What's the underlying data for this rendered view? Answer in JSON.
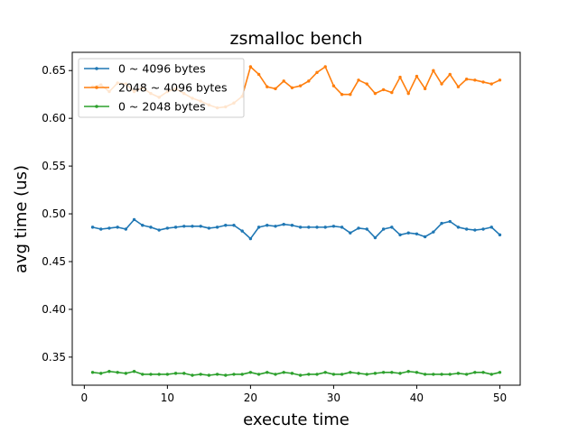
{
  "chart_data": {
    "type": "line",
    "title": "zsmalloc bench",
    "xlabel": "execute time",
    "ylabel": "avg time (us)",
    "xlim": [
      -1.45,
      52.45
    ],
    "ylim": [
      0.3206,
      0.6691
    ],
    "x_ticks": [
      0,
      10,
      20,
      30,
      40,
      50
    ],
    "y_ticks": [
      0.35,
      0.4,
      0.45,
      0.5,
      0.55,
      0.6,
      0.65
    ],
    "y_tick_labels": [
      "0.35",
      "0.40",
      "0.45",
      "0.50",
      "0.55",
      "0.60",
      "0.65"
    ],
    "grid": false,
    "legend_position": "top-left",
    "x": [
      1,
      2,
      3,
      4,
      5,
      6,
      7,
      8,
      9,
      10,
      11,
      12,
      13,
      14,
      15,
      16,
      17,
      18,
      19,
      20,
      21,
      22,
      23,
      24,
      25,
      26,
      27,
      28,
      29,
      30,
      31,
      32,
      33,
      34,
      35,
      36,
      37,
      38,
      39,
      40,
      41,
      42,
      43,
      44,
      45,
      46,
      47,
      48,
      49,
      50
    ],
    "series": [
      {
        "name": "0 ~ 4096 bytes",
        "color": "#1f77b4",
        "values": [
          0.486,
          0.484,
          0.485,
          0.486,
          0.484,
          0.494,
          0.488,
          0.486,
          0.483,
          0.485,
          0.486,
          0.487,
          0.487,
          0.487,
          0.485,
          0.486,
          0.488,
          0.488,
          0.482,
          0.474,
          0.486,
          0.488,
          0.487,
          0.489,
          0.488,
          0.486,
          0.486,
          0.486,
          0.486,
          0.487,
          0.486,
          0.48,
          0.485,
          0.484,
          0.475,
          0.484,
          0.486,
          0.478,
          0.48,
          0.479,
          0.476,
          0.481,
          0.49,
          0.492,
          0.486,
          0.484,
          0.483,
          0.484,
          0.486,
          0.478
        ]
      },
      {
        "name": "2048 ~ 4096 bytes",
        "color": "#ff7f0e",
        "values": [
          0.633,
          0.635,
          0.628,
          0.637,
          0.636,
          0.628,
          0.632,
          0.626,
          0.622,
          0.628,
          0.631,
          0.626,
          0.621,
          0.618,
          0.614,
          0.611,
          0.612,
          0.616,
          0.623,
          0.654,
          0.646,
          0.633,
          0.631,
          0.639,
          0.632,
          0.634,
          0.639,
          0.648,
          0.654,
          0.634,
          0.625,
          0.625,
          0.64,
          0.636,
          0.626,
          0.63,
          0.627,
          0.643,
          0.626,
          0.644,
          0.631,
          0.65,
          0.636,
          0.646,
          0.633,
          0.641,
          0.64,
          0.638,
          0.636,
          0.64
        ]
      },
      {
        "name": "0 ~ 2048 bytes",
        "color": "#2ca02c",
        "values": [
          0.334,
          0.333,
          0.335,
          0.334,
          0.333,
          0.335,
          0.332,
          0.332,
          0.332,
          0.332,
          0.333,
          0.333,
          0.331,
          0.332,
          0.331,
          0.332,
          0.331,
          0.332,
          0.332,
          0.334,
          0.332,
          0.334,
          0.332,
          0.334,
          0.333,
          0.331,
          0.332,
          0.332,
          0.334,
          0.332,
          0.332,
          0.334,
          0.333,
          0.332,
          0.333,
          0.334,
          0.334,
          0.333,
          0.335,
          0.334,
          0.332,
          0.332,
          0.332,
          0.332,
          0.333,
          0.332,
          0.334,
          0.334,
          0.332,
          0.334
        ]
      }
    ]
  }
}
